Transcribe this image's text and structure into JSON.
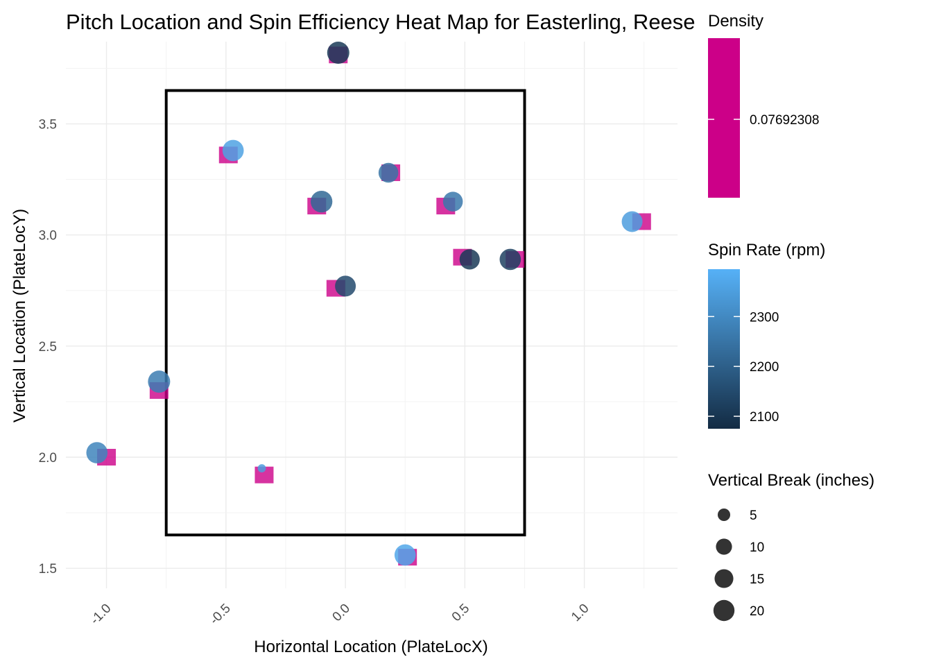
{
  "chart_data": {
    "type": "scatter",
    "title": "Pitch Location and Spin Efficiency Heat Map for Easterling, Reese",
    "xlabel": "Horizontal Location (PlateLocX)",
    "ylabel": "Vertical Location (PlateLocY)",
    "xlim": [
      -1.17,
      1.39
    ],
    "ylim": [
      1.41,
      3.87
    ],
    "x_ticks": [
      -1.0,
      -0.5,
      0.0,
      0.5,
      1.0
    ],
    "x_tick_labels": [
      "-1.0",
      "-0.5",
      "0.0",
      "0.5",
      "1.0"
    ],
    "y_ticks": [
      1.5,
      2.0,
      2.5,
      3.0,
      3.5
    ],
    "y_tick_labels": [
      "1.5",
      "2.0",
      "2.5",
      "3.0",
      "3.5"
    ],
    "grid": true,
    "strike_zone": {
      "x": [
        -0.75,
        0.75
      ],
      "y": [
        1.65,
        3.65
      ]
    },
    "density_tiles": {
      "value": 0.07692308,
      "color": "#cc0088",
      "points": [
        {
          "x": -0.03,
          "y": 3.81
        },
        {
          "x": -0.49,
          "y": 3.36
        },
        {
          "x": 0.19,
          "y": 3.28
        },
        {
          "x": -0.12,
          "y": 3.13
        },
        {
          "x": 0.42,
          "y": 3.13
        },
        {
          "x": 1.24,
          "y": 3.06
        },
        {
          "x": 0.49,
          "y": 2.9
        },
        {
          "x": 0.71,
          "y": 2.89
        },
        {
          "x": -0.04,
          "y": 2.76
        },
        {
          "x": -0.78,
          "y": 2.3
        },
        {
          "x": -1.0,
          "y": 2.0
        },
        {
          "x": -0.34,
          "y": 1.92
        },
        {
          "x": 0.26,
          "y": 1.55
        }
      ]
    },
    "pitches": [
      {
        "x": -0.03,
        "y": 3.82,
        "spin": 2110,
        "break": 20
      },
      {
        "x": -0.47,
        "y": 3.38,
        "spin": 2360,
        "break": 18
      },
      {
        "x": 0.18,
        "y": 3.28,
        "spin": 2250,
        "break": 15
      },
      {
        "x": -0.1,
        "y": 3.15,
        "spin": 2220,
        "break": 19
      },
      {
        "x": 0.45,
        "y": 3.15,
        "spin": 2260,
        "break": 15
      },
      {
        "x": 1.2,
        "y": 3.06,
        "spin": 2350,
        "break": 17
      },
      {
        "x": 0.52,
        "y": 2.89,
        "spin": 2110,
        "break": 16
      },
      {
        "x": 0.69,
        "y": 2.89,
        "spin": 2130,
        "break": 18
      },
      {
        "x": 0.0,
        "y": 2.77,
        "spin": 2150,
        "break": 17
      },
      {
        "x": -0.78,
        "y": 2.34,
        "spin": 2270,
        "break": 20
      },
      {
        "x": -1.04,
        "y": 2.02,
        "spin": 2290,
        "break": 18
      },
      {
        "x": -0.35,
        "y": 1.95,
        "spin": 2350,
        "break": 1
      },
      {
        "x": 0.25,
        "y": 1.56,
        "spin": 2370,
        "break": 18
      }
    ],
    "legends": [
      {
        "title": "Density",
        "labels": [
          "0.07692308"
        ],
        "color": "#cc0088"
      },
      {
        "title": "Spin Rate (rpm)",
        "labels": [
          "2300",
          "2200",
          "2100"
        ],
        "low_color": "#132b43",
        "high_color": "#56b1f7",
        "range": [
          2075,
          2395
        ]
      },
      {
        "title": "Vertical Break (inches)",
        "labels": [
          "5",
          "10",
          "15",
          "20"
        ],
        "values": [
          5,
          10,
          15,
          20
        ]
      }
    ]
  }
}
